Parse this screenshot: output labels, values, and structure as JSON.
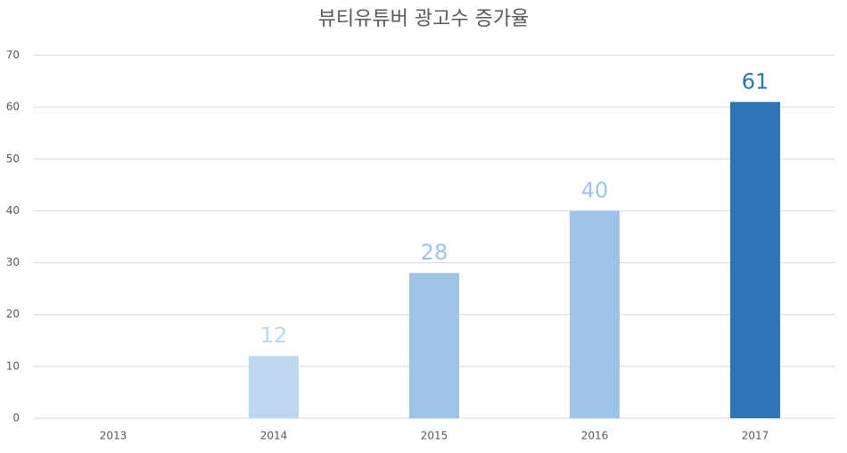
{
  "chart_data": {
    "type": "bar",
    "title": "뷰티유튜버 광고수 증가율",
    "categories": [
      "2013",
      "2014",
      "2015",
      "2016",
      "2017"
    ],
    "values": [
      null,
      12,
      28,
      40,
      61
    ],
    "colors": [
      "#bdd7ee",
      "#bdd7ee",
      "#9dc3e6",
      "#9dc3e6",
      "#2e75b6"
    ],
    "ylim": [
      0,
      70
    ],
    "yticks": [
      0,
      10,
      20,
      30,
      40,
      50,
      60,
      70
    ],
    "grid": true
  }
}
